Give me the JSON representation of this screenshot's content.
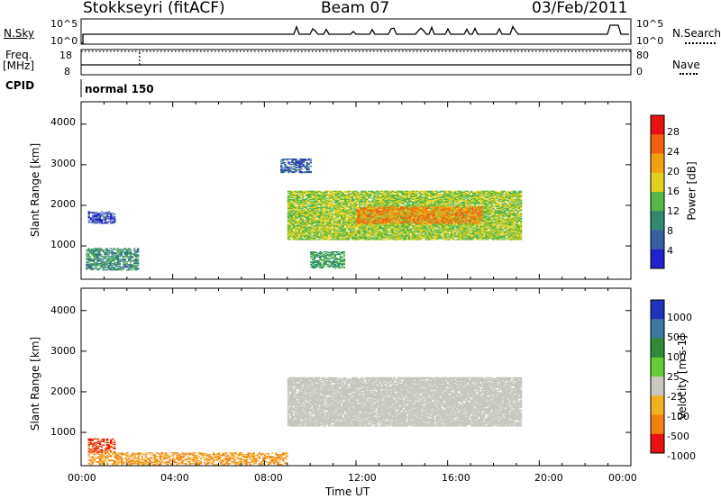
{
  "header": {
    "station": "Stokkseyri (fitACF)",
    "beam": "Beam 07",
    "date": "03/Feb/2011"
  },
  "nsky_panel": {
    "left_label": "N.Sky",
    "left_ticks": [
      "10^5",
      "10^0"
    ],
    "right_label": "N.Search",
    "right_ticks": [
      "10^5",
      "10^0"
    ]
  },
  "freq_panel": {
    "left_label_line1": "Freq.",
    "left_label_line2": "[MHz]",
    "left_ticks": [
      "18",
      "8"
    ],
    "right_label": "Nave",
    "right_ticks": [
      "80",
      "0"
    ]
  },
  "cpid_panel": {
    "label": "CPID",
    "mode": "normal 150"
  },
  "x_axis": {
    "label": "Time UT",
    "ticks": [
      "00:00",
      "04:00",
      "08:00",
      "12:00",
      "16:00",
      "20:00",
      "00:00"
    ]
  },
  "power_panel": {
    "ylabel": "Slant Range [km]",
    "yticks": [
      "4000",
      "3000",
      "2000",
      "1000"
    ],
    "colorbar_label": "Power [dB]",
    "colorbar_ticks": [
      "28",
      "24",
      "20",
      "16",
      "12",
      "8",
      "4"
    ],
    "colors": [
      "#2222cc",
      "#3a5fa0",
      "#2f8a6f",
      "#55b848",
      "#e0d020",
      "#f0a010",
      "#f06010",
      "#e81010"
    ]
  },
  "velocity_panel": {
    "ylabel": "Slant Range [km]",
    "yticks": [
      "4000",
      "3000",
      "2000",
      "1000"
    ],
    "colorbar_label": "Velocity [m s-1]",
    "colorbar_ticks": [
      "1000",
      "500",
      "100",
      "25",
      "-25",
      "-100",
      "-500",
      "-1000"
    ],
    "colors": [
      "#2233bb",
      "#3a7a9a",
      "#2f8a3a",
      "#66cc33",
      "#c8c8c0",
      "#f0b020",
      "#f08010",
      "#e81010"
    ]
  },
  "chart_data": [
    {
      "type": "heatmap",
      "title": "Power",
      "xlabel": "Time UT",
      "ylabel": "Slant Range [km]",
      "xlim": [
        0,
        24
      ],
      "ylim": [
        180,
        4550
      ],
      "colorbar": {
        "label": "Power [dB]",
        "ticks": [
          4,
          8,
          12,
          16,
          20,
          24,
          28
        ]
      },
      "regions": [
        {
          "t0": 9.0,
          "t1": 19.2,
          "r0": 1150,
          "r1": 2350,
          "value_db": 18
        },
        {
          "t0": 12.0,
          "t1": 17.5,
          "r0": 1550,
          "r1": 1950,
          "value_db": 26
        },
        {
          "t0": 0.3,
          "t1": 1.5,
          "r0": 1550,
          "r1": 1850,
          "value_db": 6
        },
        {
          "t0": 0.2,
          "t1": 2.5,
          "r0": 400,
          "r1": 950,
          "value_db": 12
        },
        {
          "t0": 8.7,
          "t1": 10.0,
          "r0": 2800,
          "r1": 3150,
          "value_db": 8
        },
        {
          "t0": 10.0,
          "t1": 11.5,
          "r0": 450,
          "r1": 850,
          "value_db": 14
        }
      ]
    },
    {
      "type": "heatmap",
      "title": "Velocity",
      "xlabel": "Time UT",
      "ylabel": "Slant Range [km]",
      "xlim": [
        0,
        24
      ],
      "ylim": [
        180,
        4550
      ],
      "colorbar": {
        "label": "Velocity [m s-1]",
        "ticks": [
          1000,
          500,
          100,
          25,
          -25,
          -100,
          -500,
          -1000
        ]
      },
      "regions": [
        {
          "t0": 9.0,
          "t1": 19.2,
          "r0": 1150,
          "r1": 2350,
          "value_ms": 0
        },
        {
          "t0": 0.3,
          "t1": 1.5,
          "r0": 500,
          "r1": 850,
          "value_ms": -500
        },
        {
          "t0": 0.3,
          "t1": 9.0,
          "r0": 200,
          "r1": 500,
          "value_ms": -100
        }
      ]
    }
  ]
}
